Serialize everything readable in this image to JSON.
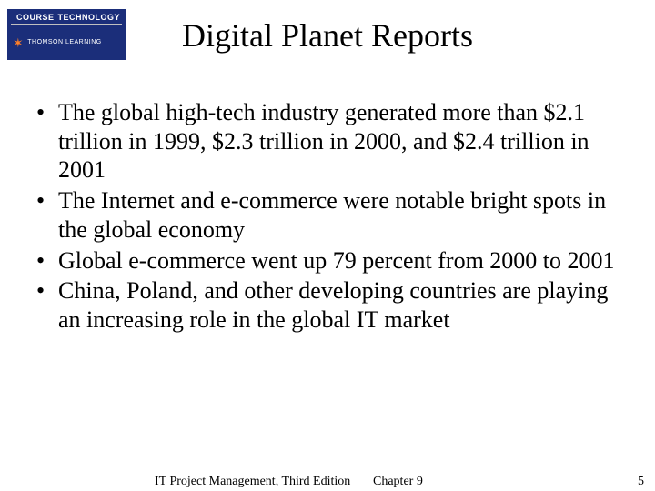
{
  "logo": {
    "top_label": "COURSE",
    "top_sub": "TECHNOLOGY",
    "bottom_label": "THOMSON LEARNING",
    "bg_color": "#1b2e7a",
    "accent_color": "#ff7f27"
  },
  "title": "Digital Planet Reports",
  "bullets": [
    "The global high-tech industry generated more than $2.1 trillion in 1999, $2.3 trillion in 2000, and $2.4 trillion in 2001",
    "The Internet and e-commerce were notable bright spots in the global economy",
    "Global e-commerce went up 79 percent from 2000 to 2001",
    "China, Poland, and other developing countries are playing an increasing role in the global IT market"
  ],
  "footer": {
    "left": "IT Project Management, Third Edition",
    "center": "Chapter 9",
    "page": "5"
  },
  "colors": {
    "background": "#ffffff",
    "text": "#000000"
  },
  "typography": {
    "title_fontsize": 36,
    "body_fontsize": 26,
    "footer_fontsize": 14,
    "font_family": "Times New Roman"
  }
}
